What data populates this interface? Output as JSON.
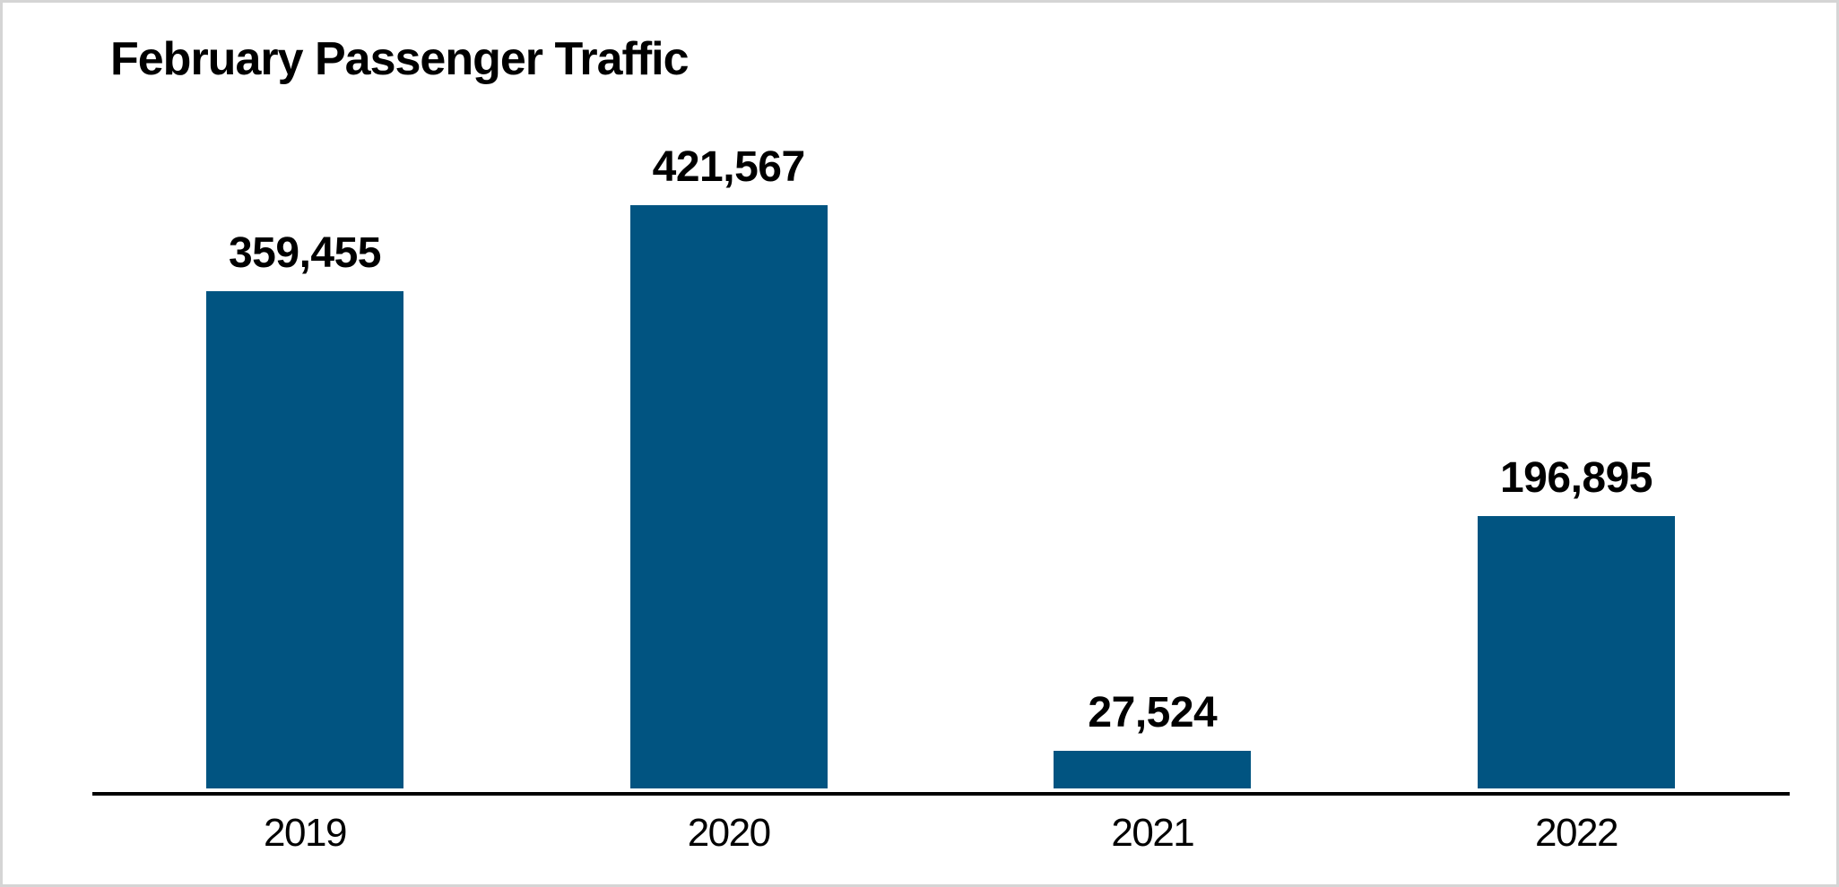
{
  "page": {
    "background": "#ffffff",
    "frame_border_color": "#d5d5d5"
  },
  "chart_data": {
    "type": "bar",
    "title": "February Passenger Traffic",
    "categories": [
      "2019",
      "2020",
      "2021",
      "2022"
    ],
    "values": [
      359455,
      421567,
      27524,
      196895
    ],
    "value_labels": [
      "359,455",
      "421,567",
      "27,524",
      "196,895"
    ],
    "xlabel": "",
    "ylabel": "",
    "ylim": [
      0,
      440000
    ],
    "grid": false,
    "legend": false,
    "bar_color": "#015481",
    "axis_color": "#000000",
    "label_color": "#000000",
    "layout_hints": {
      "y_axis_shown": false,
      "value_labels_position": "above bars",
      "category_labels_position": "below axis"
    }
  }
}
